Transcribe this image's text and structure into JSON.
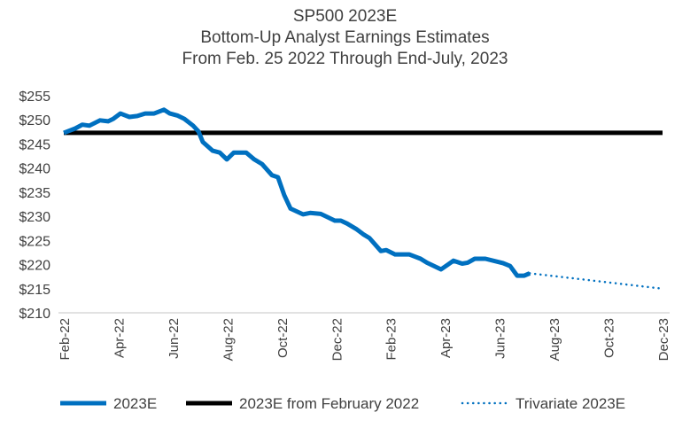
{
  "chart_data": {
    "type": "line",
    "title": [
      "SP500 2023E",
      "Bottom-Up Analyst Earnings Estimates",
      "From Feb. 25 2022 Through End-July, 2023"
    ],
    "xlabel": "",
    "ylabel": "",
    "x_unit": "months since Feb-22",
    "xlim": [
      0,
      22
    ],
    "ylim": [
      210,
      255
    ],
    "y_ticks": [
      210,
      215,
      220,
      225,
      230,
      235,
      240,
      245,
      250,
      255
    ],
    "y_tick_labels": [
      "$210",
      "$215",
      "$220",
      "$225",
      "$230",
      "$235",
      "$240",
      "$245",
      "$250",
      "$255"
    ],
    "x_ticks": [
      0,
      2,
      4,
      6,
      8,
      10,
      12,
      14,
      16,
      18,
      20,
      22
    ],
    "x_tick_labels": [
      "Feb-22",
      "Apr-22",
      "Jun-22",
      "Aug-22",
      "Oct-22",
      "Dec-22",
      "Feb-23",
      "Apr-23",
      "Jun-23",
      "Aug-23",
      "Oct-23",
      "Dec-23"
    ],
    "grid": false,
    "legend_position": "bottom",
    "series": [
      {
        "name": "2023E",
        "color": "#0070C0",
        "style": "solid",
        "x": [
          0,
          0.42,
          0.68,
          0.94,
          1.33,
          1.63,
          1.82,
          2.08,
          2.41,
          2.7,
          2.99,
          3.32,
          3.68,
          3.9,
          4.17,
          4.43,
          4.75,
          4.95,
          5.11,
          5.47,
          5.73,
          5.99,
          6.25,
          6.7,
          7,
          7.29,
          7.65,
          7.87,
          8.1,
          8.33,
          8.79,
          9.05,
          9.44,
          9.63,
          9.96,
          10.18,
          10.41,
          10.74,
          11,
          11.23,
          11.65,
          11.85,
          12.17,
          12.69,
          13.11,
          13.34,
          13.86,
          14.32,
          14.64,
          14.84,
          15.1,
          15.49,
          16.14,
          16.4,
          16.66,
          16.92,
          17.12
        ],
        "values": [
          247.3,
          248.2,
          249,
          248.8,
          249.9,
          249.7,
          250.2,
          251.3,
          250.6,
          250.8,
          251.3,
          251.3,
          252.1,
          251.3,
          250.9,
          250.2,
          248.8,
          247.6,
          245.4,
          243.6,
          243.2,
          241.8,
          243.2,
          243.2,
          241.8,
          240.8,
          238.5,
          238.1,
          234.4,
          231.6,
          230.4,
          230.7,
          230.5,
          230,
          229.1,
          229.1,
          228.5,
          227.4,
          226.3,
          225.5,
          222.8,
          223,
          222.1,
          222.1,
          221.2,
          220.4,
          219,
          220.8,
          220.2,
          220.4,
          221.2,
          221.2,
          220.3,
          219.7,
          217.7,
          217.7,
          218.2
        ]
      },
      {
        "name": "2023E from February 2022",
        "color": "#000000",
        "style": "solid",
        "x": [
          0,
          22
        ],
        "values": [
          247.3,
          247.3
        ]
      },
      {
        "name": "Trivariate 2023E",
        "color": "#0070C0",
        "style": "dotted",
        "x": [
          17.12,
          22
        ],
        "values": [
          218.2,
          215
        ]
      }
    ]
  }
}
